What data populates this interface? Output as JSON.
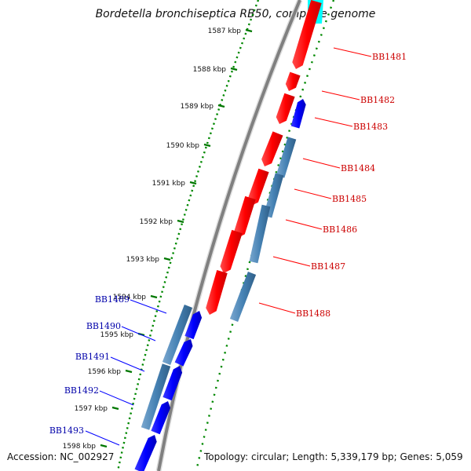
{
  "title": "Bordetella bronchiseptica RB50, complete genome",
  "footer": {
    "accession": "Accession: NC_002927",
    "summary": "Topology: circular; Length: 5,339,179 bp; Genes: 5,059"
  },
  "colors": {
    "forward_gene": "#ff0000",
    "reverse_gene": "#0000ff",
    "feature_blue": "#4682b4",
    "tick_marks": "#007700",
    "backbone": "#808080",
    "label_forward": "#cc0000",
    "label_reverse": "#0000aa"
  },
  "ticks": [
    {
      "label": "1587 kbp"
    },
    {
      "label": "1588 kbp"
    },
    {
      "label": "1589 kbp"
    },
    {
      "label": "1590 kbp"
    },
    {
      "label": "1591 kbp"
    },
    {
      "label": "1592 kbp"
    },
    {
      "label": "1593 kbp"
    },
    {
      "label": "1594 kbp"
    },
    {
      "label": "1595 kbp"
    },
    {
      "label": "1596 kbp"
    },
    {
      "label": "1597 kbp"
    },
    {
      "label": "1598 kbp"
    }
  ],
  "genes_forward": [
    {
      "label": "BB1481"
    },
    {
      "label": "BB1482"
    },
    {
      "label": "BB1483"
    },
    {
      "label": "BB1484"
    },
    {
      "label": "BB1485"
    },
    {
      "label": "BB1486"
    },
    {
      "label": "BB1487"
    },
    {
      "label": "BB1488"
    }
  ],
  "genes_reverse": [
    {
      "label": "BB1489"
    },
    {
      "label": "BB1490"
    },
    {
      "label": "BB1491"
    },
    {
      "label": "BB1492"
    },
    {
      "label": "BB1493"
    }
  ]
}
